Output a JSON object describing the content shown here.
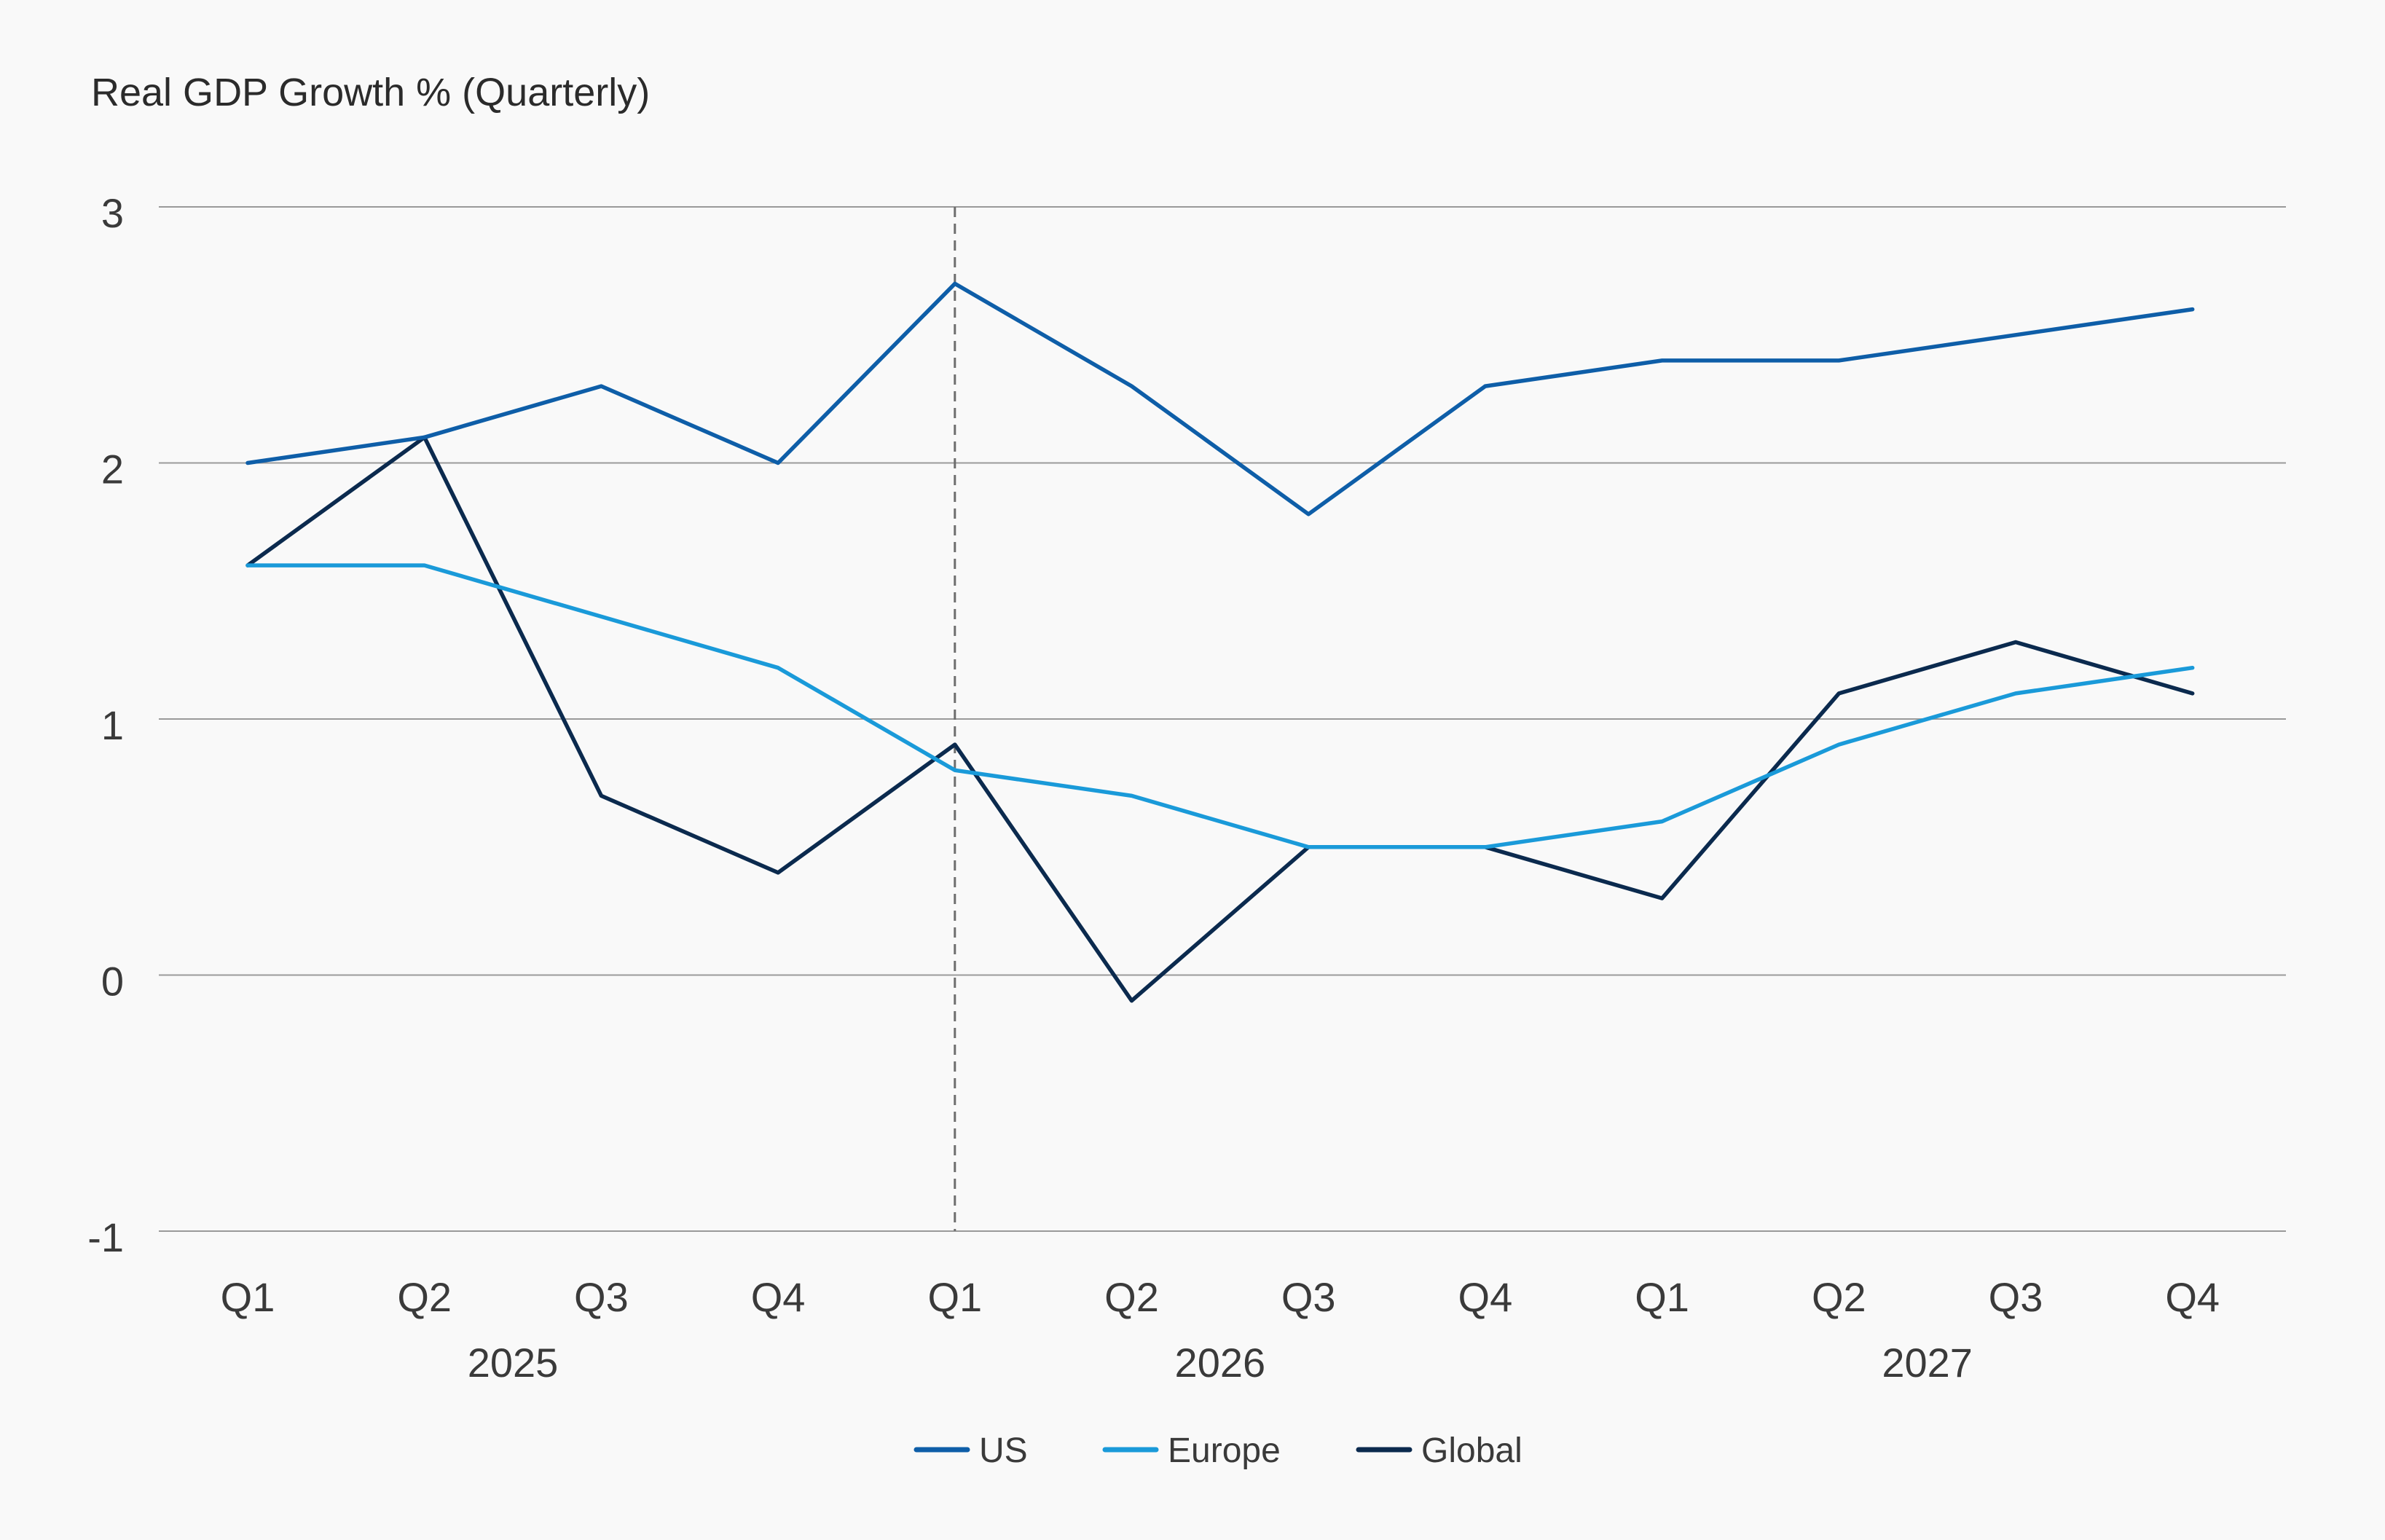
{
  "chart_data": {
    "type": "line",
    "title": "",
    "ylabel": "Real GDP Growth % (Quarterly)",
    "xlabel": "",
    "categories": [
      "Q1",
      "Q2",
      "Q3",
      "Q4",
      "Q1",
      "Q2",
      "Q3",
      "Q4",
      "Q1",
      "Q2",
      "Q3",
      "Q4"
    ],
    "year_groups": [
      {
        "label": "2025",
        "start": 0,
        "end": 3
      },
      {
        "label": "2026",
        "start": 4,
        "end": 7
      },
      {
        "label": "2027",
        "start": 8,
        "end": 11
      }
    ],
    "y_ticks": [
      3,
      2,
      1,
      0,
      -1
    ],
    "ylim": [
      -1,
      3
    ],
    "grid": true,
    "legend_position": "bottom-center",
    "marker_index": 4,
    "series": [
      {
        "name": "US",
        "color": "#0e5ea8",
        "values": [
          2.0,
          2.1,
          2.3,
          2.0,
          2.7,
          2.3,
          1.8,
          2.3,
          2.4,
          2.4,
          2.5,
          2.6
        ]
      },
      {
        "name": "Europe",
        "color": "#1a9ad9",
        "values": [
          1.6,
          1.6,
          1.4,
          1.2,
          0.8,
          0.7,
          0.5,
          0.5,
          0.6,
          0.9,
          1.1,
          1.2
        ]
      },
      {
        "name": "Global",
        "color": "#0b2a4e",
        "values": [
          1.6,
          2.1,
          0.7,
          0.4,
          0.9,
          -0.1,
          0.5,
          0.5,
          0.3,
          1.1,
          1.3,
          1.1
        ]
      }
    ]
  }
}
